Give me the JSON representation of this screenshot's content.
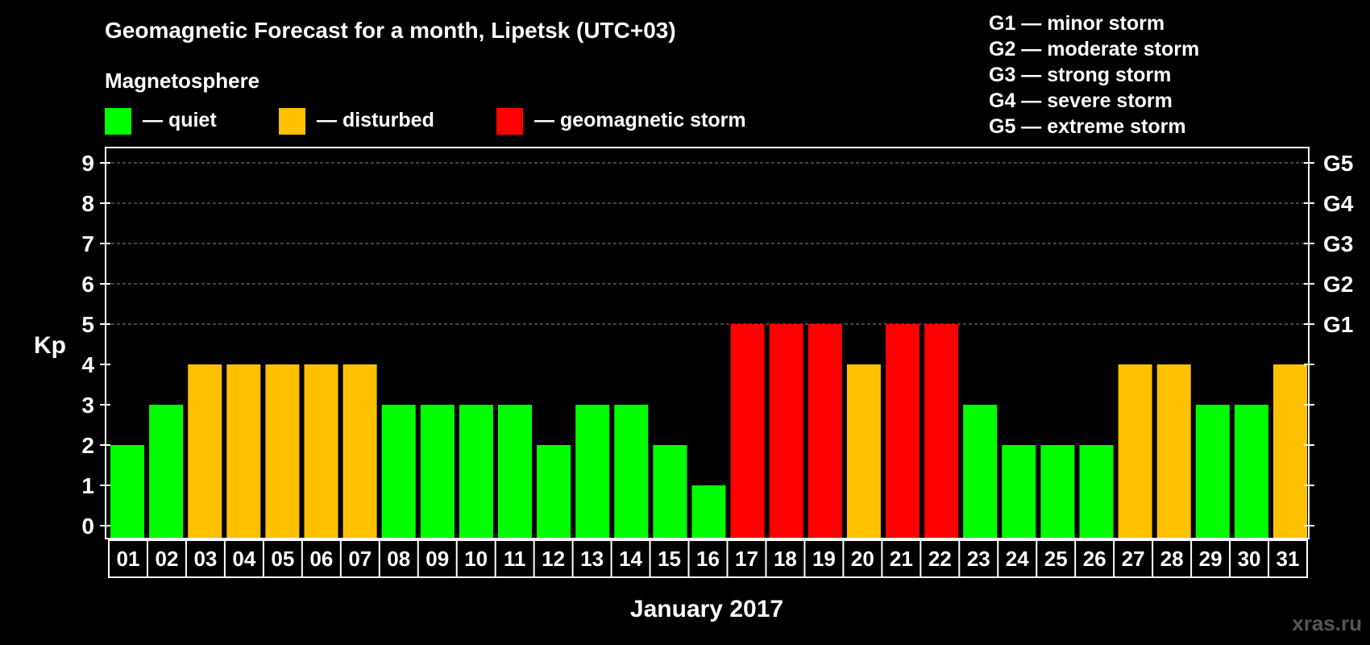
{
  "title": "Geomagnetic Forecast for a month, Lipetsk (UTC+03)",
  "legend": {
    "heading": "Magnetosphere",
    "items": [
      {
        "label": "— quiet",
        "color": "#00ff00"
      },
      {
        "label": "— disturbed",
        "color": "#ffc000"
      },
      {
        "label": "— geomagnetic storm",
        "color": "#ff0000"
      }
    ]
  },
  "storm_scale": [
    "G1 — minor storm",
    "G2 — moderate storm",
    "G3 — strong storm",
    "G4 — severe storm",
    "G5 — extreme storm"
  ],
  "watermark": "xras.ru",
  "chart_data": {
    "type": "bar",
    "ylabel": "Kp",
    "xlabel": "January 2017",
    "ylim": [
      0,
      9
    ],
    "yticks": [
      0,
      1,
      2,
      3,
      4,
      5,
      6,
      7,
      8,
      9
    ],
    "right_axis_labels": [
      {
        "value": 5,
        "label": "G1"
      },
      {
        "value": 6,
        "label": "G2"
      },
      {
        "value": 7,
        "label": "G3"
      },
      {
        "value": 8,
        "label": "G4"
      },
      {
        "value": 9,
        "label": "G5"
      }
    ],
    "grid": true,
    "categories": [
      "01",
      "02",
      "03",
      "04",
      "05",
      "06",
      "07",
      "08",
      "09",
      "10",
      "11",
      "12",
      "13",
      "14",
      "15",
      "16",
      "17",
      "18",
      "19",
      "20",
      "21",
      "22",
      "23",
      "24",
      "25",
      "26",
      "27",
      "28",
      "29",
      "30",
      "31"
    ],
    "values": [
      2,
      3,
      4,
      4,
      4,
      4,
      4,
      3,
      3,
      3,
      3,
      2,
      3,
      3,
      2,
      1,
      5,
      5,
      5,
      4,
      5,
      5,
      3,
      2,
      2,
      2,
      4,
      4,
      3,
      3,
      4
    ],
    "colors": {
      "quiet": "#00ff00",
      "disturbed": "#ffc000",
      "storm": "#ff0000"
    }
  }
}
